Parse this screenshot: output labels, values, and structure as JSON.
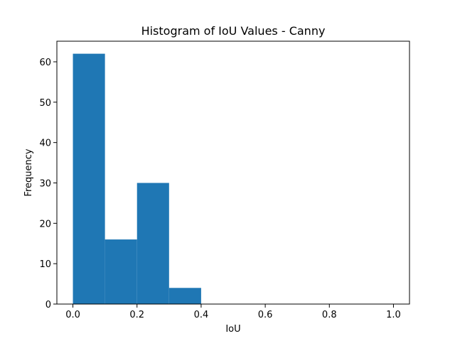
{
  "chart_data": {
    "type": "bar",
    "title": "Histogram of IoU Values - Canny",
    "xlabel": "IoU",
    "ylabel": "Frequency",
    "bin_edges": [
      0.0,
      0.1,
      0.2,
      0.3,
      0.4
    ],
    "values": [
      62,
      16,
      30,
      4
    ],
    "xlim": [
      -0.05,
      1.05
    ],
    "ylim": [
      0,
      65.1
    ],
    "xticks": [
      0.0,
      0.2,
      0.4,
      0.6,
      0.8,
      1.0
    ],
    "xtick_labels": [
      "0.0",
      "0.2",
      "0.4",
      "0.6",
      "0.8",
      "1.0"
    ],
    "yticks": [
      0,
      10,
      20,
      30,
      40,
      50,
      60
    ],
    "ytick_labels": [
      "0",
      "10",
      "20",
      "30",
      "40",
      "50",
      "60"
    ],
    "grid": false,
    "bar_color": "#1f77b4"
  }
}
